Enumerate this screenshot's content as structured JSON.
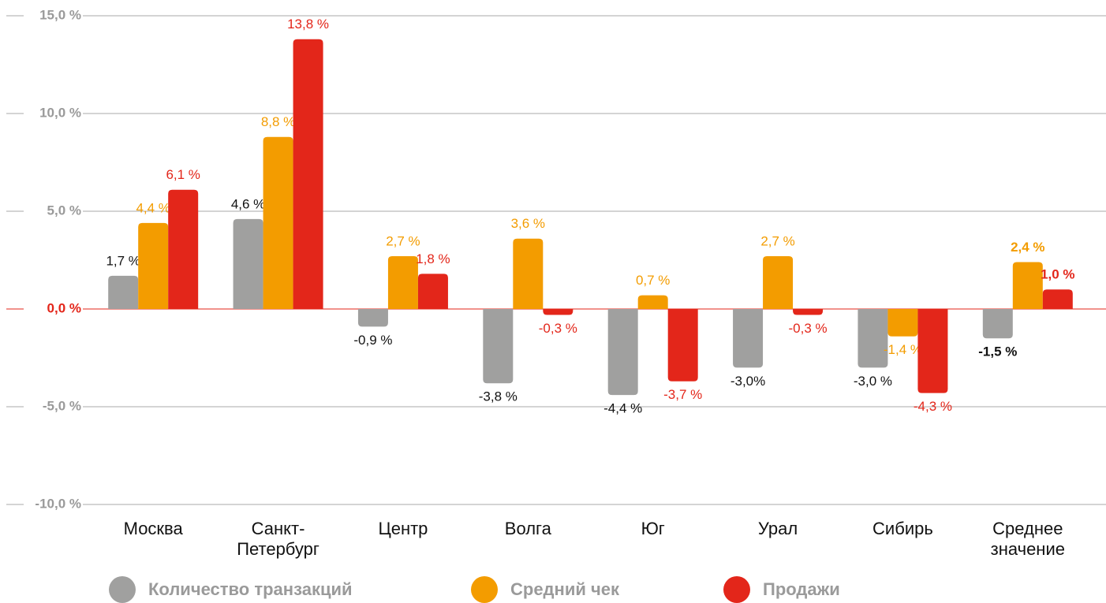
{
  "chart_data": {
    "type": "bar",
    "categories": [
      "Москва",
      "Санкт-Петербург",
      "Центр",
      "Волга",
      "Юг",
      "Урал",
      "Сибирь",
      "Среднее значение"
    ],
    "series": [
      {
        "name": "Количество транзакций",
        "color": "#a0a09f",
        "values": [
          1.7,
          4.6,
          -0.9,
          -3.8,
          -4.4,
          -3.0,
          -3.0,
          -1.5
        ],
        "value_labels": [
          "1,7 %",
          "4,6 %",
          "-0,9 %",
          "-3,8 %",
          "-4,4 %",
          "-3,0%",
          "-3,0 %",
          "-1,5 %"
        ],
        "label_color": "#111111"
      },
      {
        "name": "Средний чек",
        "color": "#f39c00",
        "values": [
          4.4,
          8.8,
          2.7,
          3.6,
          0.7,
          2.7,
          -1.4,
          2.4
        ],
        "value_labels": [
          "4,4 %",
          "8,8 %",
          "2,7 %",
          "3,6 %",
          "0,7 %",
          "2,7 %",
          "-1,4 %",
          "2,4 %"
        ],
        "label_color": "#f39c00"
      },
      {
        "name": "Продажи",
        "color": "#e3261a",
        "values": [
          6.1,
          13.8,
          1.8,
          -0.3,
          -3.7,
          -0.3,
          -4.3,
          1.0
        ],
        "value_labels": [
          "6,1 %",
          "13,8 %",
          "1,8 %",
          "-0,3 %",
          "-3,7 %",
          "-0,3 %",
          "-4,3 %",
          "1,0 %"
        ],
        "label_color": "#e3261a"
      }
    ],
    "ylim": [
      -10,
      15
    ],
    "yticks": [
      {
        "value": 15,
        "label": "15,0 %"
      },
      {
        "value": 10,
        "label": "10,0 %"
      },
      {
        "value": 5,
        "label": "5,0 %"
      },
      {
        "value": 0,
        "label": "0,0 %"
      },
      {
        "value": -5,
        "label": "-5,0 %"
      },
      {
        "value": -10,
        "label": "-10,0 %"
      }
    ],
    "grid": true
  }
}
